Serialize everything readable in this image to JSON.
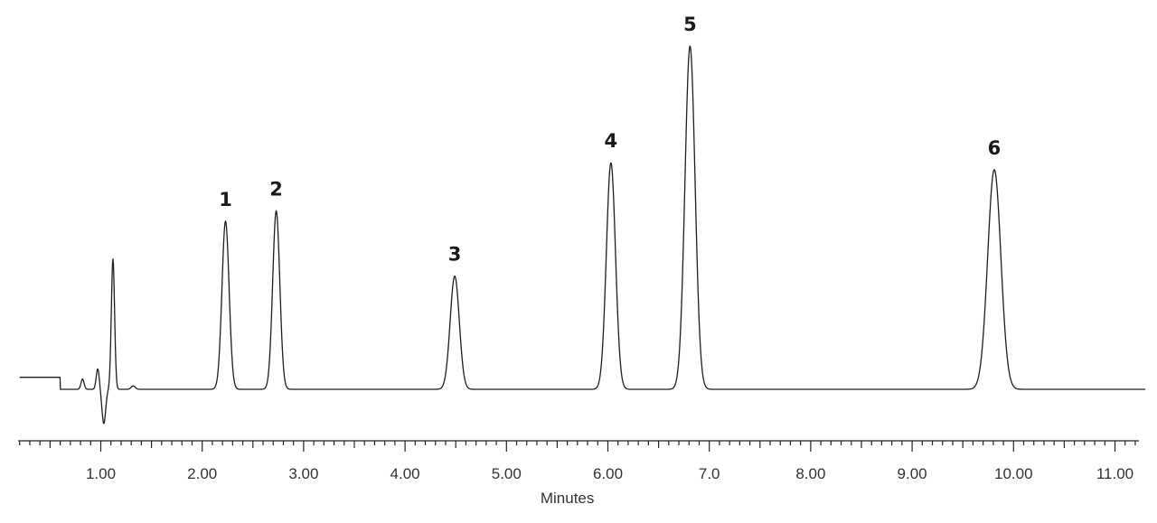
{
  "chart_data": {
    "type": "line",
    "title": "",
    "xlabel": "Minutes",
    "ylabel": "",
    "xlim": [
      0.1,
      11.3
    ],
    "ylim": [
      -0.12,
      1.0
    ],
    "grid": false,
    "legend": "none",
    "x_ticks": [
      {
        "value": 1.0,
        "label": "1.00"
      },
      {
        "value": 2.0,
        "label": "2.00"
      },
      {
        "value": 3.0,
        "label": "3.00"
      },
      {
        "value": 4.0,
        "label": "4.00"
      },
      {
        "value": 5.0,
        "label": "5.00"
      },
      {
        "value": 6.0,
        "label": "6.00"
      },
      {
        "value": 7.0,
        "label": "7.0"
      },
      {
        "value": 8.0,
        "label": "8.00"
      },
      {
        "value": 9.0,
        "label": "9.00"
      },
      {
        "value": 10.0,
        "label": "10.00"
      },
      {
        "value": 11.0,
        "label": "11.00"
      }
    ],
    "minor_tick_step": 0.1,
    "peaks": [
      {
        "label": "1",
        "time": 2.23,
        "height": 0.49,
        "width": 0.035
      },
      {
        "label": "2",
        "time": 2.73,
        "height": 0.52,
        "width": 0.035
      },
      {
        "label": "3",
        "time": 4.49,
        "height": 0.33,
        "width": 0.045
      },
      {
        "label": "4",
        "time": 6.03,
        "height": 0.66,
        "width": 0.045
      },
      {
        "label": "5",
        "time": 6.81,
        "height": 1.0,
        "width": 0.05
      },
      {
        "label": "6",
        "time": 9.81,
        "height": 0.64,
        "width": 0.065
      }
    ],
    "baseline_features": [
      {
        "time": 0.82,
        "height": 0.03,
        "width": 0.015
      },
      {
        "time": 0.97,
        "height": 0.06,
        "width": 0.015
      },
      {
        "time": 1.03,
        "height": -0.1,
        "width": 0.018
      },
      {
        "time": 1.12,
        "height": 0.38,
        "width": 0.016
      },
      {
        "time": 1.32,
        "height": 0.01,
        "width": 0.02
      }
    ],
    "colors": {
      "trace": "#1e1e1e",
      "axis": "#222222",
      "text": "#1a1a1a"
    }
  }
}
